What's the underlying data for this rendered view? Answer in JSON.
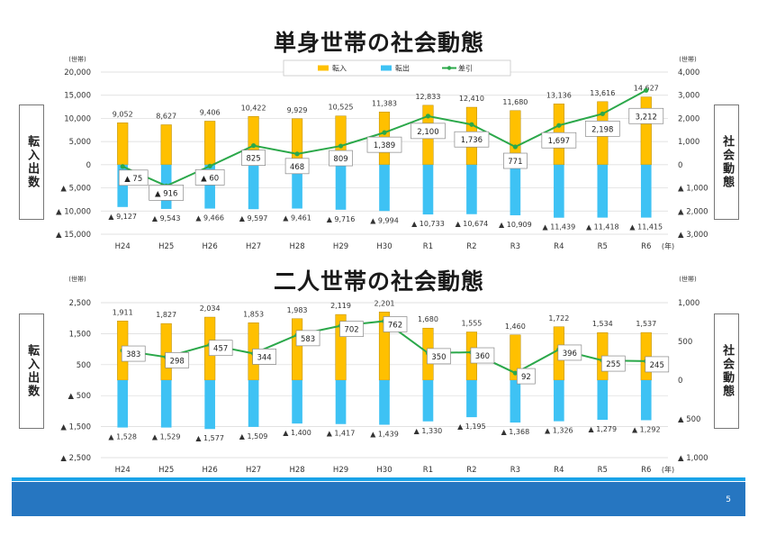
{
  "page": {
    "number": "5"
  },
  "charts": [
    {
      "title": "単身世帯の社会動態",
      "left_box": "転入出数",
      "right_box": "社会動態"
    },
    {
      "title": "二人世帯の社会動態",
      "left_box": "転入出数",
      "right_box": "社会動態"
    }
  ],
  "colors": {
    "in": "#FFC000",
    "out": "#3EC2F4",
    "net": "#2BA84A"
  },
  "chart_data": [
    {
      "type": "bar",
      "title": "単身世帯の社会動態",
      "categories": [
        "H24",
        "H25",
        "H26",
        "H27",
        "H28",
        "H29",
        "H30",
        "R1",
        "R2",
        "R3",
        "R4",
        "R5",
        "R6"
      ],
      "x_unit": "(年)",
      "left_axis": {
        "unit": "(世帯)",
        "ylim": [
          -15000,
          20000
        ],
        "ticks": [
          -15000,
          -10000,
          -5000,
          0,
          5000,
          10000,
          15000,
          20000
        ],
        "tick_labels": [
          "▲ 15,000",
          "▲ 10,000",
          "▲ 5,000",
          "0",
          "5,000",
          "10,000",
          "15,000",
          "20,000"
        ]
      },
      "right_axis": {
        "unit": "(世帯)",
        "ylim": [
          -3000,
          4000
        ],
        "ticks": [
          -3000,
          -2000,
          -1000,
          0,
          1000,
          2000,
          3000,
          4000
        ],
        "tick_labels": [
          "▲ 3,000",
          "▲ 2,000",
          "▲ 1,000",
          "0",
          "1,000",
          "2,000",
          "3,000",
          "4,000"
        ]
      },
      "legend": [
        "転入",
        "転出",
        "差引"
      ],
      "series": [
        {
          "name": "転入",
          "axis": "left",
          "values": [
            9052,
            8627,
            9406,
            10422,
            9929,
            10525,
            11383,
            12833,
            12410,
            11680,
            13136,
            13616,
            14627
          ],
          "labels": [
            "9,052",
            "8,627",
            "9,406",
            "10,422",
            "9,929",
            "10,525",
            "11,383",
            "12,833",
            "12,410",
            "11,680",
            "13,136",
            "13,616",
            "14,627"
          ]
        },
        {
          "name": "転出",
          "axis": "left",
          "values": [
            -9127,
            -9543,
            -9466,
            -9597,
            -9461,
            -9716,
            -9994,
            -10733,
            -10674,
            -10909,
            -11439,
            -11418,
            -11415
          ],
          "labels": [
            "▲ 9,127",
            "▲ 9,543",
            "▲ 9,466",
            "▲ 9,597",
            "▲ 9,461",
            "▲ 9,716",
            "▲ 9,994",
            "▲ 10,733",
            "▲ 10,674",
            "▲ 10,909",
            "▲ 11,439",
            "▲ 11,418",
            "▲ 11,415"
          ]
        },
        {
          "name": "差引",
          "axis": "right",
          "values": [
            -75,
            -916,
            -60,
            825,
            468,
            809,
            1389,
            2100,
            1736,
            771,
            1697,
            2198,
            3212
          ],
          "labels": [
            "▲ 75",
            "▲ 916",
            "▲ 60",
            "825",
            "468",
            "809",
            "1,389",
            "2,100",
            "1,736",
            "771",
            "1,697",
            "2,198",
            "3,212"
          ]
        }
      ]
    },
    {
      "type": "bar",
      "title": "二人世帯の社会動態",
      "categories": [
        "H24",
        "H25",
        "H26",
        "H27",
        "H28",
        "H29",
        "H30",
        "R1",
        "R2",
        "R3",
        "R4",
        "R5",
        "R6"
      ],
      "x_unit": "(年)",
      "left_axis": {
        "unit": "(世帯)",
        "ylim": [
          -2500,
          2500
        ],
        "ticks": [
          -2500,
          -1500,
          -500,
          500,
          1500,
          2500
        ],
        "tick_labels": [
          "▲ 2,500",
          "▲ 1,500",
          "▲ 500",
          "500",
          "1,500",
          "2,500"
        ]
      },
      "right_axis": {
        "unit": "(世帯)",
        "ylim": [
          -1000,
          1000
        ],
        "ticks": [
          -1000,
          -500,
          0,
          500,
          1000
        ],
        "tick_labels": [
          "▲ 1,000",
          "▲ 500",
          "0",
          "500",
          "1,000"
        ]
      },
      "series": [
        {
          "name": "転入",
          "axis": "left",
          "values": [
            1911,
            1827,
            2034,
            1853,
            1983,
            2119,
            2201,
            1680,
            1555,
            1460,
            1722,
            1534,
            1537
          ],
          "labels": [
            "1,911",
            "1,827",
            "2,034",
            "1,853",
            "1,983",
            "2,119",
            "2,201",
            "1,680",
            "1,555",
            "1,460",
            "1,722",
            "1,534",
            "1,537"
          ]
        },
        {
          "name": "転出",
          "axis": "left",
          "values": [
            -1528,
            -1529,
            -1577,
            -1509,
            -1400,
            -1417,
            -1439,
            -1330,
            -1195,
            -1368,
            -1326,
            -1279,
            -1292
          ],
          "labels": [
            "▲ 1,528",
            "▲ 1,529",
            "▲ 1,577",
            "▲ 1,509",
            "▲ 1,400",
            "▲ 1,417",
            "▲ 1,439",
            "▲ 1,330",
            "▲ 1,195",
            "▲ 1,368",
            "▲ 1,326",
            "▲ 1,279",
            "▲ 1,292"
          ]
        },
        {
          "name": "差引",
          "axis": "right",
          "values": [
            383,
            298,
            457,
            344,
            583,
            702,
            762,
            350,
            360,
            92,
            396,
            255,
            245
          ],
          "labels": [
            "383",
            "298",
            "457",
            "344",
            "583",
            "702",
            "762",
            "350",
            "360",
            "92",
            "396",
            "255",
            "245"
          ]
        }
      ]
    }
  ]
}
